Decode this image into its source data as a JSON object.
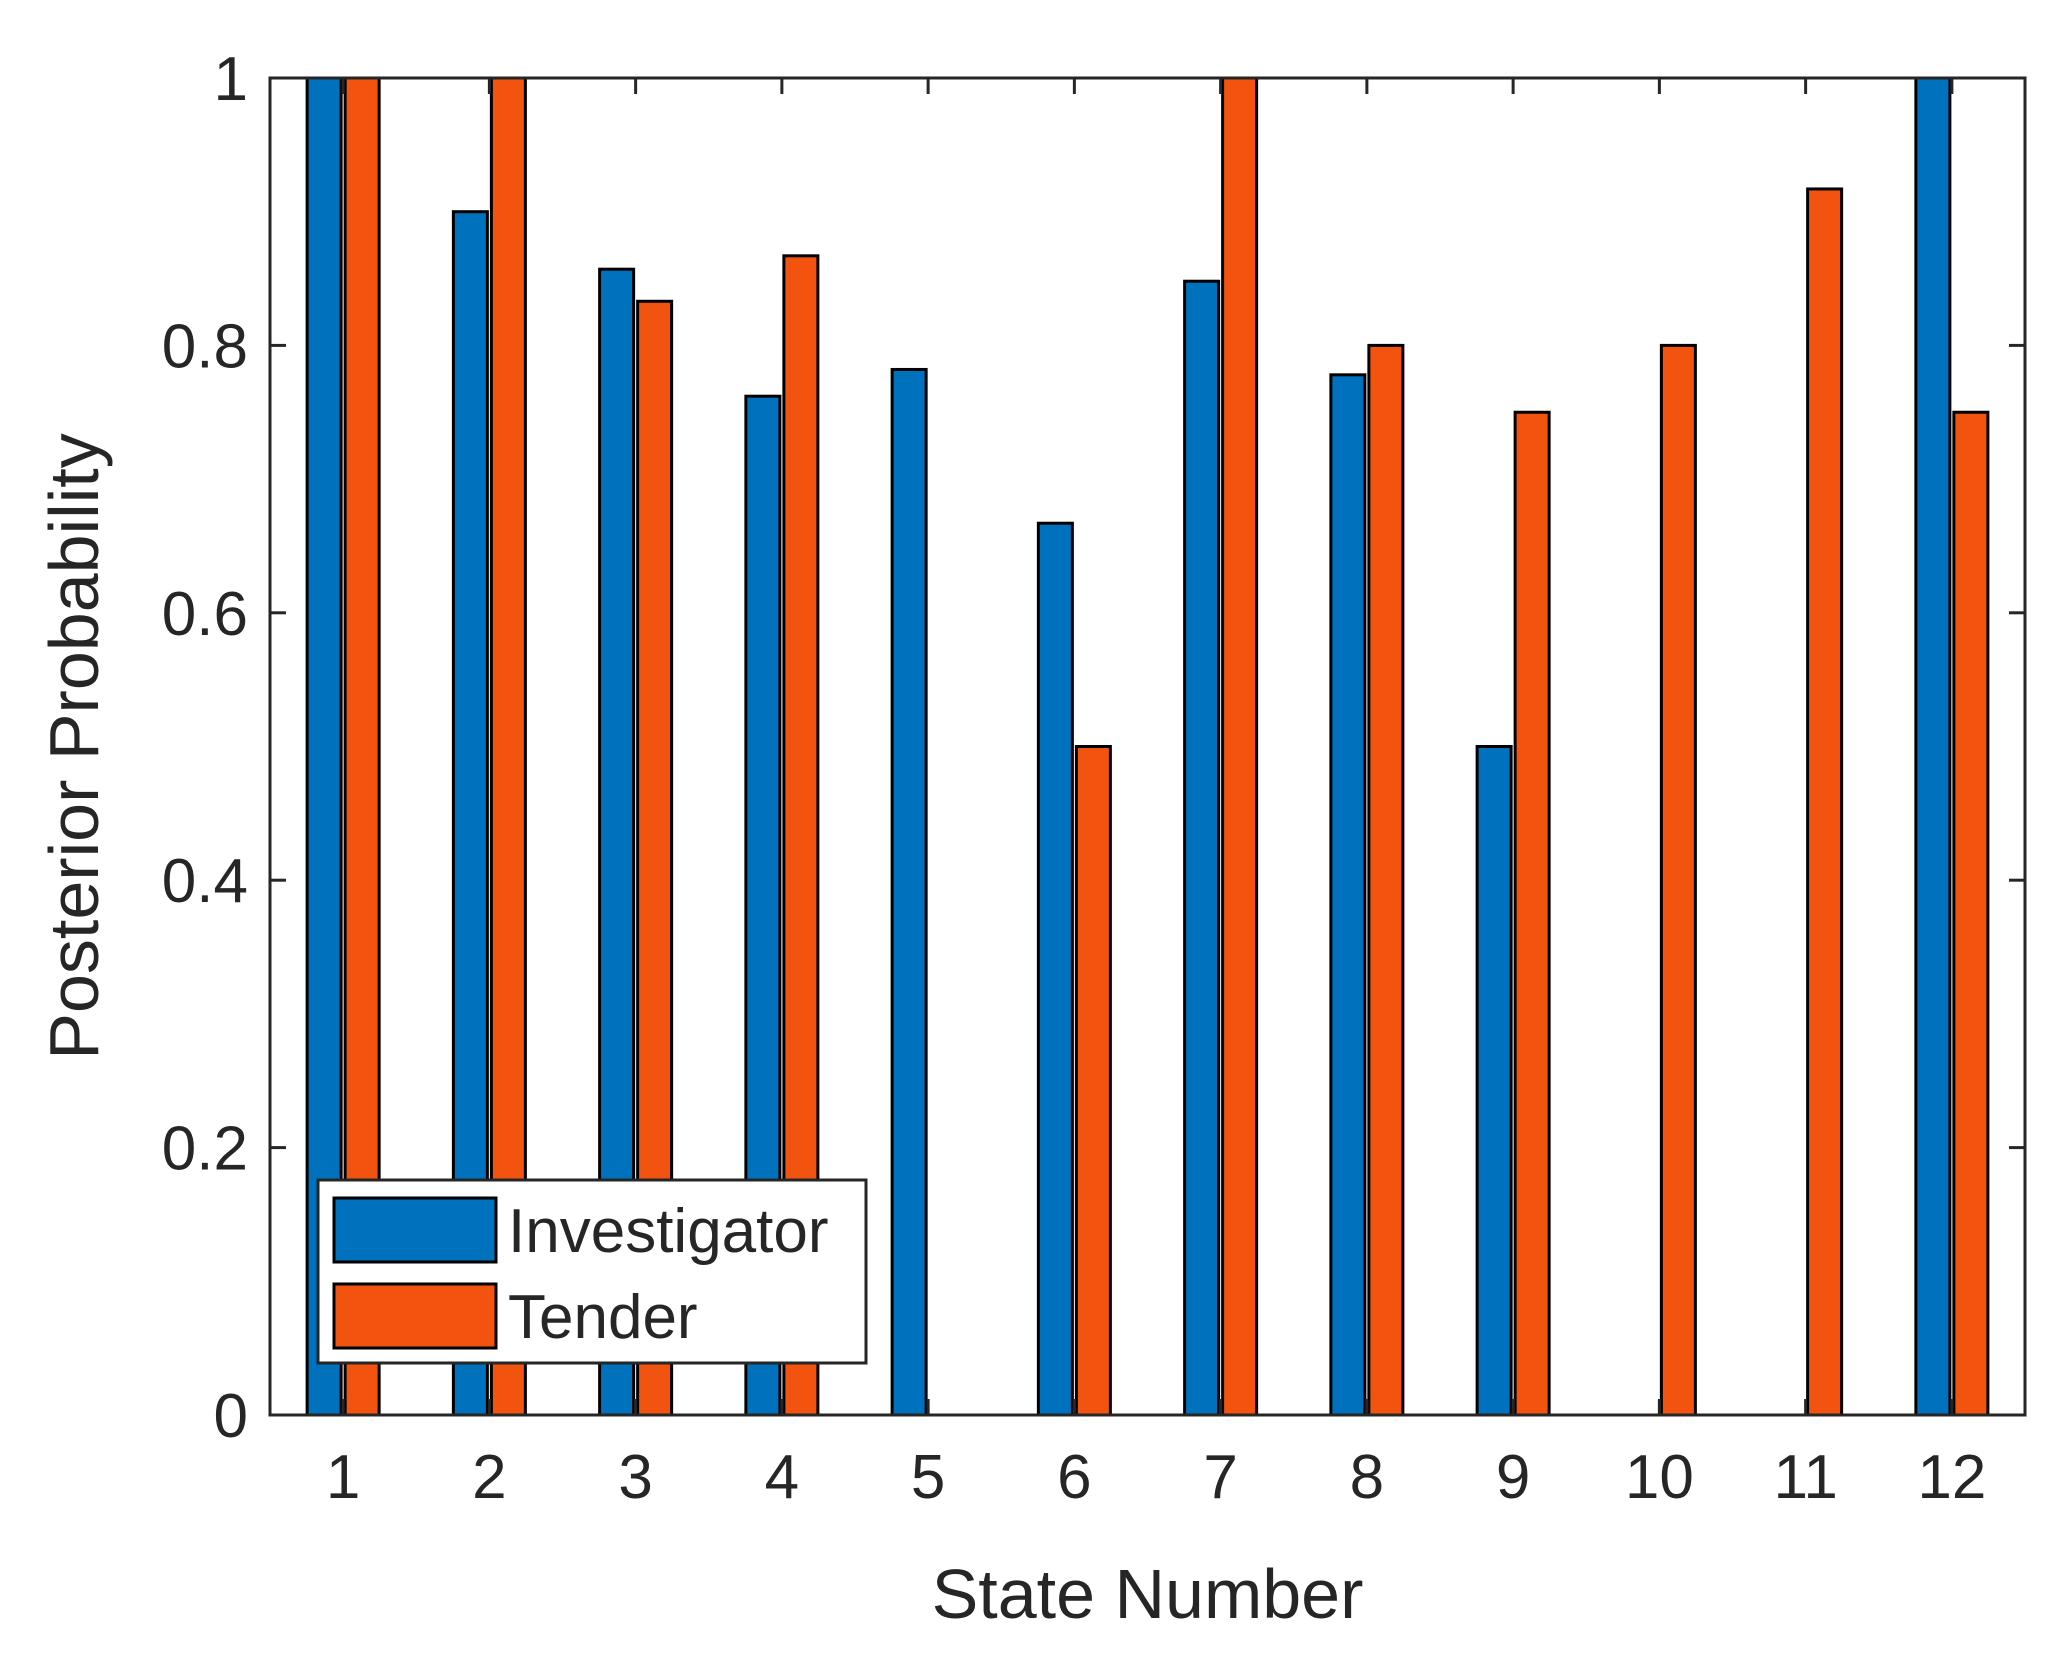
{
  "chart_data": {
    "type": "bar",
    "title": "",
    "xlabel": "State Number",
    "ylabel": "Posterior Probability",
    "categories": [
      "1",
      "2",
      "3",
      "4",
      "5",
      "6",
      "7",
      "8",
      "9",
      "10",
      "11",
      "12"
    ],
    "series": [
      {
        "name": "Investigator",
        "color": "#0072BD",
        "values": [
          1.0,
          0.9,
          0.857,
          0.762,
          0.782,
          0.667,
          0.848,
          0.778,
          0.5,
          0,
          0,
          1.0
        ]
      },
      {
        "name": "Tender",
        "color": "#F25410",
        "values": [
          1.0,
          1.0,
          0.833,
          0.867,
          0,
          0.5,
          1.0,
          0.8,
          0.75,
          0.8,
          0.917,
          0.75
        ]
      }
    ],
    "ylim": [
      0,
      1
    ],
    "yticks": [
      "0",
      "0.2",
      "0.4",
      "0.6",
      "0.8",
      "1"
    ],
    "grid": false,
    "legend_position": "bottom-left",
    "colors": {
      "axis": "#262626",
      "bar_edge": "#000000",
      "background": "#ffffff"
    }
  }
}
